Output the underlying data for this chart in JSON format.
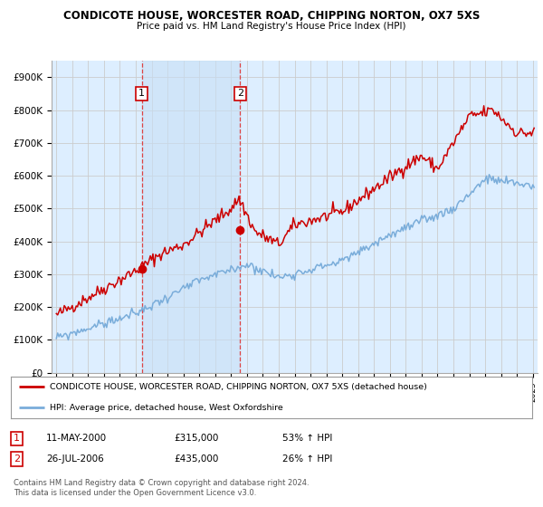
{
  "title": "CONDICOTE HOUSE, WORCESTER ROAD, CHIPPING NORTON, OX7 5XS",
  "subtitle": "Price paid vs. HM Land Registry's House Price Index (HPI)",
  "ylabel_ticks": [
    "£0",
    "£100K",
    "£200K",
    "£300K",
    "£400K",
    "£500K",
    "£600K",
    "£700K",
    "£800K",
    "£900K"
  ],
  "ytick_vals": [
    0,
    100000,
    200000,
    300000,
    400000,
    500000,
    600000,
    700000,
    800000,
    900000
  ],
  "ylim": [
    0,
    950000
  ],
  "xlim_start": 1994.7,
  "xlim_end": 2025.3,
  "sale1_year": 2000.37,
  "sale1_price": 315000,
  "sale1_label": "1",
  "sale1_date": "11-MAY-2000",
  "sale1_pct": "53% ↑ HPI",
  "sale2_year": 2006.57,
  "sale2_price": 435000,
  "sale2_label": "2",
  "sale2_date": "26-JUL-2006",
  "sale2_pct": "26% ↑ HPI",
  "red_line_color": "#cc0000",
  "blue_line_color": "#7aadda",
  "grid_color": "#cccccc",
  "bg_color": "#ffffff",
  "plot_bg_color": "#ddeeff",
  "marker_color": "#cc0000",
  "legend_line1": "CONDICOTE HOUSE, WORCESTER ROAD, CHIPPING NORTON, OX7 5XS (detached house)",
  "legend_line2": "HPI: Average price, detached house, West Oxfordshire",
  "footnote": "Contains HM Land Registry data © Crown copyright and database right 2024.\nThis data is licensed under the Open Government Licence v3.0.",
  "sale_box_color": "#cc0000",
  "dashed_line_color": "#dd4444",
  "shade_between_sales": true,
  "shade_color": "#c8dff5"
}
